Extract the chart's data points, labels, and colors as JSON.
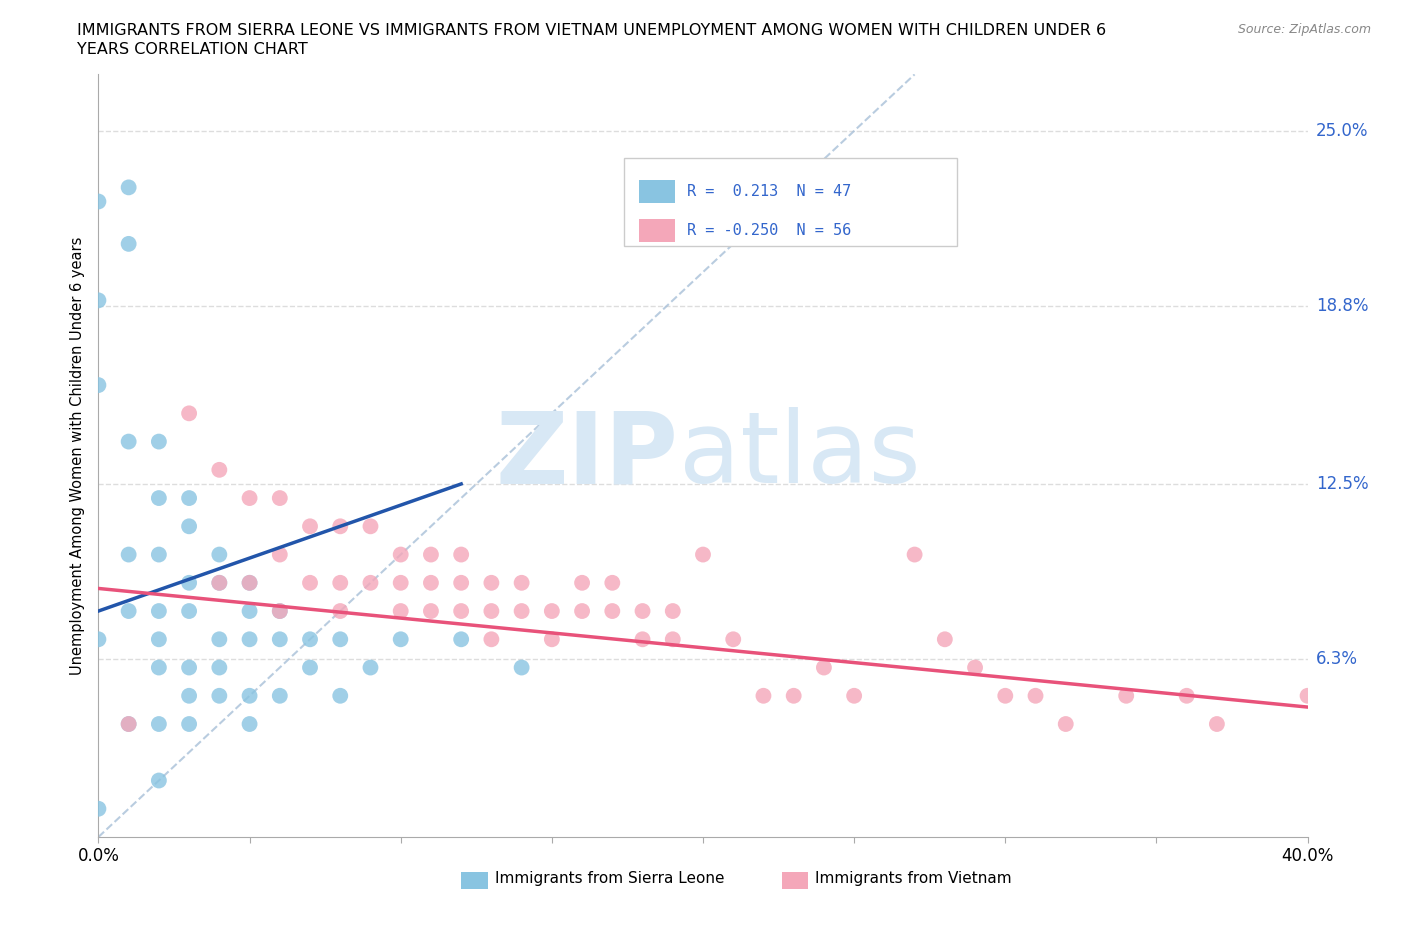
{
  "title_line1": "IMMIGRANTS FROM SIERRA LEONE VS IMMIGRANTS FROM VIETNAM UNEMPLOYMENT AMONG WOMEN WITH CHILDREN UNDER 6",
  "title_line2": "YEARS CORRELATION CHART",
  "source": "Source: ZipAtlas.com",
  "ylabel": "Unemployment Among Women with Children Under 6 years",
  "ytick_labels": [
    "25.0%",
    "18.8%",
    "12.5%",
    "6.3%"
  ],
  "ytick_values": [
    0.25,
    0.188,
    0.125,
    0.063
  ],
  "xlim": [
    0.0,
    0.4
  ],
  "ylim": [
    0.0,
    0.27
  ],
  "color_sierra": "#89C4E1",
  "color_vietnam": "#F4A7B9",
  "trendline_sierra_color": "#2255AA",
  "trendline_vietnam_color": "#E8527A",
  "diagonal_color": "#A8C0D8",
  "watermark_zip": "ZIP",
  "watermark_atlas": "atlas",
  "watermark_color": "#D8E8F5",
  "background_color": "#FFFFFF",
  "grid_color": "#DDDDDD",
  "legend_r1_label": "R =  0.213  N = 47",
  "legend_r2_label": "R = -0.250  N = 56",
  "legend_text_color": "#3366CC",
  "bottom_legend_sierra": "Immigrants from Sierra Leone",
  "bottom_legend_vietnam": "Immigrants from Vietnam",
  "sierra_leone_x": [
    0.0,
    0.0,
    0.0,
    0.0,
    0.0,
    0.01,
    0.01,
    0.01,
    0.01,
    0.01,
    0.01,
    0.02,
    0.02,
    0.02,
    0.02,
    0.02,
    0.02,
    0.02,
    0.02,
    0.03,
    0.03,
    0.03,
    0.03,
    0.03,
    0.03,
    0.03,
    0.04,
    0.04,
    0.04,
    0.04,
    0.04,
    0.05,
    0.05,
    0.05,
    0.05,
    0.05,
    0.06,
    0.06,
    0.06,
    0.07,
    0.07,
    0.08,
    0.08,
    0.09,
    0.1,
    0.12,
    0.14
  ],
  "sierra_leone_y": [
    0.225,
    0.19,
    0.16,
    0.07,
    0.01,
    0.23,
    0.21,
    0.14,
    0.1,
    0.08,
    0.04,
    0.14,
    0.12,
    0.1,
    0.08,
    0.07,
    0.06,
    0.04,
    0.02,
    0.12,
    0.11,
    0.09,
    0.08,
    0.06,
    0.05,
    0.04,
    0.1,
    0.09,
    0.07,
    0.06,
    0.05,
    0.09,
    0.08,
    0.07,
    0.05,
    0.04,
    0.08,
    0.07,
    0.05,
    0.07,
    0.06,
    0.07,
    0.05,
    0.06,
    0.07,
    0.07,
    0.06
  ],
  "vietnam_x": [
    0.01,
    0.03,
    0.04,
    0.04,
    0.05,
    0.05,
    0.06,
    0.06,
    0.06,
    0.07,
    0.07,
    0.08,
    0.08,
    0.08,
    0.09,
    0.09,
    0.1,
    0.1,
    0.1,
    0.11,
    0.11,
    0.11,
    0.12,
    0.12,
    0.12,
    0.13,
    0.13,
    0.13,
    0.14,
    0.14,
    0.15,
    0.15,
    0.16,
    0.16,
    0.17,
    0.17,
    0.18,
    0.18,
    0.19,
    0.19,
    0.2,
    0.21,
    0.22,
    0.23,
    0.24,
    0.25,
    0.27,
    0.28,
    0.29,
    0.3,
    0.31,
    0.32,
    0.34,
    0.36,
    0.37,
    0.4
  ],
  "vietnam_y": [
    0.04,
    0.15,
    0.13,
    0.09,
    0.12,
    0.09,
    0.12,
    0.1,
    0.08,
    0.11,
    0.09,
    0.11,
    0.09,
    0.08,
    0.11,
    0.09,
    0.1,
    0.09,
    0.08,
    0.1,
    0.09,
    0.08,
    0.1,
    0.09,
    0.08,
    0.09,
    0.08,
    0.07,
    0.09,
    0.08,
    0.08,
    0.07,
    0.09,
    0.08,
    0.09,
    0.08,
    0.08,
    0.07,
    0.08,
    0.07,
    0.1,
    0.07,
    0.05,
    0.05,
    0.06,
    0.05,
    0.1,
    0.07,
    0.06,
    0.05,
    0.05,
    0.04,
    0.05,
    0.05,
    0.04,
    0.05
  ],
  "sierra_trendline_x": [
    0.0,
    0.12
  ],
  "sierra_trendline_y": [
    0.08,
    0.125
  ],
  "vietnam_trendline_x": [
    0.0,
    0.4
  ],
  "vietnam_trendline_y": [
    0.088,
    0.046
  ]
}
